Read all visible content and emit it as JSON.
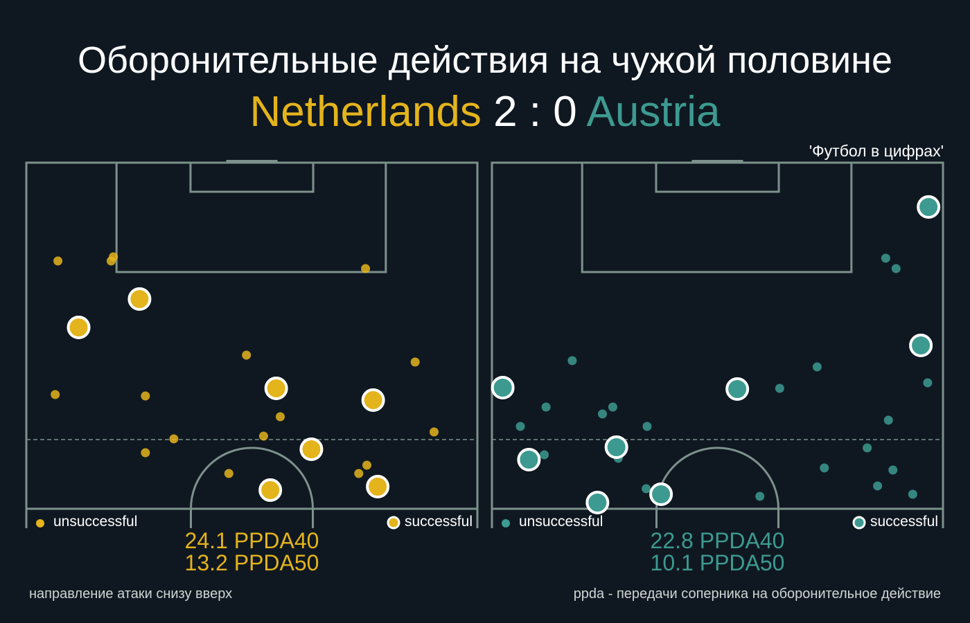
{
  "title": "Оборонительные действия на чужой половине",
  "match": {
    "home_team": "Netherlands",
    "score": "2 : 0",
    "away_team": "Austria"
  },
  "source_label": "'Футбол в цифрах'",
  "colors": {
    "background": "#0f1821",
    "pitch_lines": "#7d918c",
    "home": "#e4b41c",
    "away": "#3d9a90"
  },
  "legend": {
    "unsuccessful": "unsuccessful",
    "successful": "successful"
  },
  "footer": {
    "left_note": "направление атаки снизу вверх",
    "right_note": "ppda - передачи соперника на оборонительное действие"
  },
  "chart_data": [
    {
      "type": "scatter",
      "team": "Netherlands",
      "ppda40": "24.1 PPDA40",
      "ppda50": "13.2 PPDA50",
      "xlim": [
        0,
        100
      ],
      "ylim": [
        50,
        100
      ],
      "series": [
        {
          "name": "unsuccessful",
          "points": [
            {
              "x": 7,
              "y": 85.8
            },
            {
              "x": 18.8,
              "y": 85.8
            },
            {
              "x": 19.3,
              "y": 86.4
            },
            {
              "x": 75.2,
              "y": 84.7
            },
            {
              "x": 48.8,
              "y": 72.2
            },
            {
              "x": 86.2,
              "y": 71.2
            },
            {
              "x": 6.4,
              "y": 66.5
            },
            {
              "x": 26.4,
              "y": 66.3
            },
            {
              "x": 56.3,
              "y": 63.3
            },
            {
              "x": 90.4,
              "y": 61.1
            },
            {
              "x": 52.6,
              "y": 60.5
            },
            {
              "x": 32.7,
              "y": 60.1
            },
            {
              "x": 26.4,
              "y": 58.1
            },
            {
              "x": 44.9,
              "y": 55.1
            },
            {
              "x": 75.5,
              "y": 56.3
            },
            {
              "x": 73.7,
              "y": 55.1
            }
          ]
        },
        {
          "name": "successful",
          "points": [
            {
              "x": 25.1,
              "y": 80.3
            },
            {
              "x": 11.6,
              "y": 76.2
            },
            {
              "x": 55.4,
              "y": 67.4
            },
            {
              "x": 76.9,
              "y": 65.7
            },
            {
              "x": 63.2,
              "y": 58.6
            },
            {
              "x": 54.1,
              "y": 52.7
            },
            {
              "x": 77.9,
              "y": 53.2
            }
          ]
        }
      ]
    },
    {
      "type": "scatter",
      "team": "Austria",
      "ppda40": "22.8 PPDA40",
      "ppda50": "10.1 PPDA50",
      "xlim": [
        0,
        100
      ],
      "ylim": [
        50,
        100
      ],
      "series": [
        {
          "name": "unsuccessful",
          "points": [
            {
              "x": 87.3,
              "y": 86.2
            },
            {
              "x": 89.6,
              "y": 84.7
            },
            {
              "x": 17.8,
              "y": 71.4
            },
            {
              "x": 72.1,
              "y": 70.5
            },
            {
              "x": 96.6,
              "y": 68.2
            },
            {
              "x": 63.8,
              "y": 67.4
            },
            {
              "x": 12,
              "y": 64.7
            },
            {
              "x": 26.8,
              "y": 64.7
            },
            {
              "x": 24.5,
              "y": 63.7
            },
            {
              "x": 87.9,
              "y": 62.8
            },
            {
              "x": 6.3,
              "y": 61.9
            },
            {
              "x": 34.4,
              "y": 61.9
            },
            {
              "x": 83.2,
              "y": 58.8
            },
            {
              "x": 11.6,
              "y": 57.8
            },
            {
              "x": 28,
              "y": 57.3
            },
            {
              "x": 73.7,
              "y": 55.9
            },
            {
              "x": 88.9,
              "y": 55.6
            },
            {
              "x": 85.5,
              "y": 53.3
            },
            {
              "x": 34.2,
              "y": 52.9
            },
            {
              "x": 59.4,
              "y": 51.8
            },
            {
              "x": 93.3,
              "y": 52.1
            }
          ]
        },
        {
          "name": "successful",
          "points": [
            {
              "x": 96.8,
              "y": 93.6
            },
            {
              "x": 95.1,
              "y": 73.6
            },
            {
              "x": 2.4,
              "y": 67.5
            },
            {
              "x": 54.4,
              "y": 67.3
            },
            {
              "x": 27.6,
              "y": 58.9
            },
            {
              "x": 8.2,
              "y": 57.1
            },
            {
              "x": 37.5,
              "y": 52.1
            },
            {
              "x": 23.4,
              "y": 50.9
            }
          ]
        }
      ]
    }
  ]
}
